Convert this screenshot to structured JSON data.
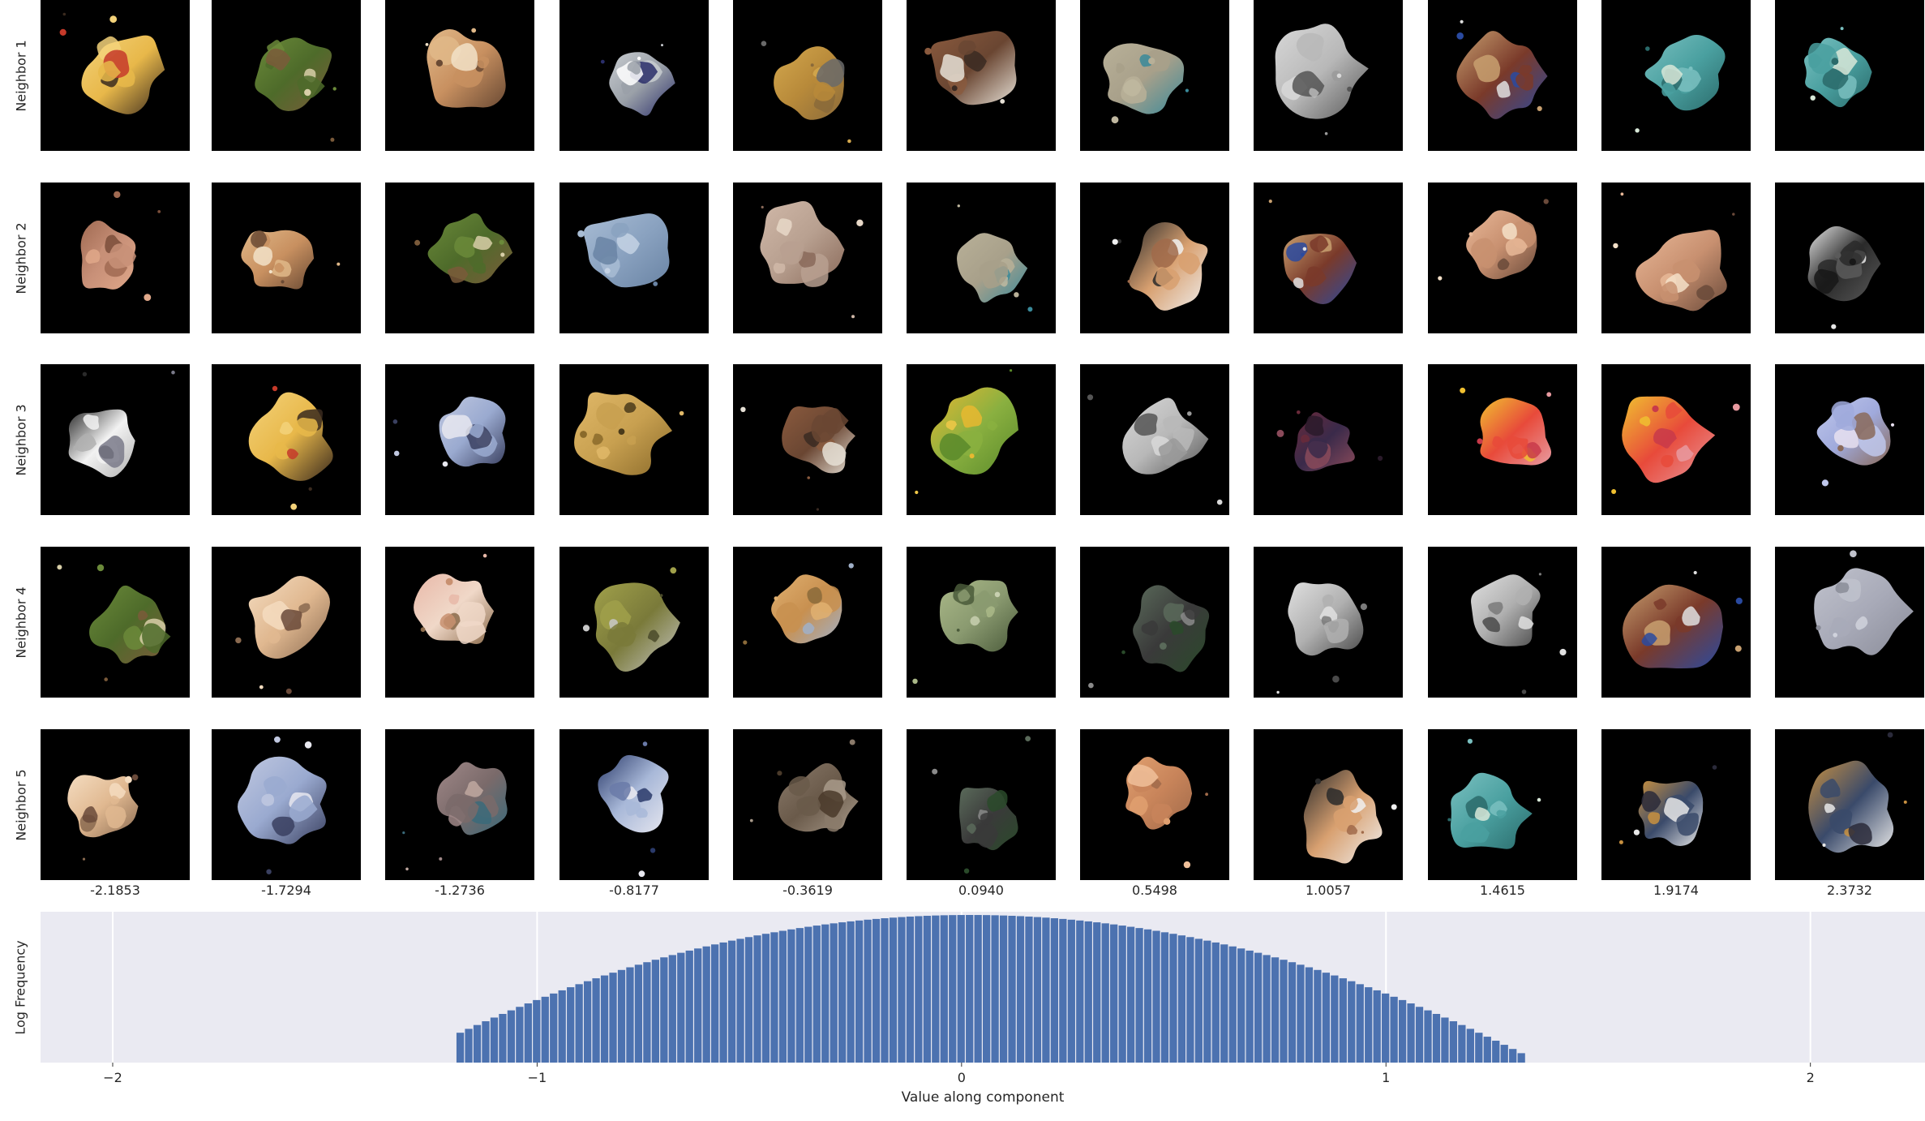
{
  "rows": [
    {
      "label": "Neighbor 1",
      "icons": [
        "shell-patch",
        "caterpillar-patch",
        "tiger-face-patch",
        "window-mosaic-patch",
        "bread-patch",
        "brown-lump-patch",
        "beach-patch",
        "gray-box-patch",
        "market-stall-patch",
        "teal-ceiling-patch",
        "teal-ceiling-patch"
      ]
    },
    {
      "label": "Neighbor 2",
      "icons": [
        "wood-patch",
        "tiger-face-patch",
        "caterpillar-patch",
        "water-patch",
        "rock-patch",
        "beach-patch",
        "speaker-cart-patch",
        "market-stall-patch",
        "ribbed-structure-patch",
        "ribbed-structure-patch",
        "dark-small-patch"
      ]
    },
    {
      "label": "Neighbor 3",
      "icons": [
        "cow-pattern-patch",
        "shell-patch",
        "silver-horse-patch",
        "gold-surface-patch",
        "brown-lump-patch",
        "green-field-patch",
        "gray-box-patch",
        "purple-window-patch",
        "colorful-cloth-patch",
        "colorful-cloth-patch",
        "lavender-patch"
      ]
    },
    {
      "label": "Neighbor 4",
      "icons": [
        "caterpillar-patch",
        "sleeping-cat-patch",
        "axolotl-patch",
        "olive-blob-patch",
        "desert-patch",
        "leafy-patch",
        "dark-building-patch",
        "bw-machine-patch",
        "bw-machine-patch",
        "market-stall-patch",
        "gray-blob-patch"
      ]
    },
    {
      "label": "Neighbor 5",
      "icons": [
        "sleeping-cat-patch",
        "silver-horse-patch",
        "metallic-blur-patch",
        "jet-ski-patch",
        "animal-head-patch",
        "dark-building-patch",
        "orange-strip-patch",
        "speaker-cart-patch",
        "teal-ceiling-patch",
        "shelf-people-patch",
        "shelf-people-patch"
      ]
    }
  ],
  "column_values": [
    "-2.1853",
    "-1.7294",
    "-1.2736",
    "-0.8177",
    "-0.3619",
    "0.0940",
    "0.5498",
    "1.0057",
    "1.4615",
    "1.9174",
    "2.3732"
  ],
  "patch_palettes": {
    "shell-patch": [
      "#e8b84a",
      "#f3d27a",
      "#3a2a1e",
      "#c63a2a"
    ],
    "caterpillar-patch": [
      "#4e6b2a",
      "#6b8a3a",
      "#7a5a3a",
      "#d8cfa8"
    ],
    "tiger-face-patch": [
      "#c89060",
      "#e0b888",
      "#6a4a34",
      "#f2e2c8"
    ],
    "window-mosaic-patch": [
      "#9aa0a8",
      "#c8ccd0",
      "#2a2e6a",
      "#ffffff"
    ],
    "bread-patch": [
      "#b88a3a",
      "#d4a84e",
      "#8a6a3a",
      "#6a6a6a"
    ],
    "brown-lump-patch": [
      "#6a4632",
      "#8a5a3e",
      "#e6e0d6",
      "#3a2a22"
    ],
    "beach-patch": [
      "#a8a08a",
      "#b8b098",
      "#3a8a9a",
      "#c0b8a0"
    ],
    "gray-box-patch": [
      "#b8b8b8",
      "#d8d8d8",
      "#555555",
      "#9a9a9a"
    ],
    "market-stall-patch": [
      "#7a3a2a",
      "#c8a070",
      "#2a4aa0",
      "#e0e0e0"
    ],
    "teal-ceiling-patch": [
      "#4aa0a0",
      "#7ac0c0",
      "#2a6a6a",
      "#d8e8d8"
    ],
    "wood-patch": [
      "#c89078",
      "#a06a52",
      "#e0a88a",
      "#7a4e3a"
    ],
    "water-patch": [
      "#8aa2c0",
      "#a8bcd4",
      "#6a84a4",
      "#c4d2e4"
    ],
    "rock-patch": [
      "#b8a090",
      "#d0b8a8",
      "#8a6a5a",
      "#e8d8c8"
    ],
    "speaker-cart-patch": [
      "#d8a070",
      "#2a2a2a",
      "#f0f0f0",
      "#a06a4a"
    ],
    "ribbed-structure-patch": [
      "#c89070",
      "#e8b898",
      "#6a4a3a",
      "#f4e0c8"
    ],
    "dark-small-patch": [
      "#2a2a2a",
      "#e8e8e8",
      "#5a5a5a",
      "#181818"
    ],
    "cow-pattern-patch": [
      "#f2f2f2",
      "#2a2a2a",
      "#b0b0b0",
      "#7a7a8a"
    ],
    "silver-horse-patch": [
      "#9aaad0",
      "#c0c8e0",
      "#3a4060",
      "#e8e8f0"
    ],
    "gold-surface-patch": [
      "#c8a050",
      "#e0b868",
      "#8a6a2a",
      "#4a3a1a"
    ],
    "green-field-patch": [
      "#8ab040",
      "#e8b830",
      "#5a8a2a",
      "#f0c848"
    ],
    "purple-window-patch": [
      "#3a2a4a",
      "#6a2a3a",
      "#8a4a5a",
      "#2a1a2a"
    ],
    "colorful-cloth-patch": [
      "#e84a3a",
      "#f0c030",
      "#e89aa0",
      "#c83a4a"
    ],
    "lavender-patch": [
      "#a0aadc",
      "#c0c8ec",
      "#8a6a5a",
      "#e8e0f0"
    ],
    "sleeping-cat-patch": [
      "#e0b890",
      "#f4dcc0",
      "#8a6a50",
      "#6a4a3a"
    ],
    "axolotl-patch": [
      "#f0d8c8",
      "#e8b8a8",
      "#8a6a4a",
      "#c89070"
    ],
    "olive-blob-patch": [
      "#7a7a3a",
      "#a0a04a",
      "#c8c8c8",
      "#4a4a2a"
    ],
    "desert-patch": [
      "#c89050",
      "#e0b070",
      "#a0b0c8",
      "#8a6a3a"
    ],
    "leafy-patch": [
      "#8a9a70",
      "#aab888",
      "#4a5a3a",
      "#c8d0b0"
    ],
    "dark-building-patch": [
      "#3a3a3a",
      "#5a6a5a",
      "#2a4a2a",
      "#8a8a8a"
    ],
    "bw-machine-patch": [
      "#b0b0b0",
      "#e0e0e0",
      "#4a4a4a",
      "#7a7a7a"
    ],
    "gray-blob-patch": [
      "#a8aab8",
      "#c0c2cc",
      "#8a8c98",
      "#d0d2dc"
    ],
    "metallic-blur-patch": [
      "#7a6a6a",
      "#a08888",
      "#3a6a7a",
      "#c0a8a0"
    ],
    "jet-ski-patch": [
      "#a8b8d8",
      "#2a3a6a",
      "#e8e8f0",
      "#6a7aa8"
    ],
    "animal-head-patch": [
      "#6a5a4a",
      "#8a7a6a",
      "#a89a8a",
      "#4a3a2a"
    ],
    "orange-strip-patch": [
      "#c8845a",
      "#e0a070",
      "#a06a4a",
      "#f0c09a"
    ],
    "shelf-people-patch": [
      "#3a4a6a",
      "#c89040",
      "#e8e8e8",
      "#2a2a3a"
    ]
  },
  "chart_data": {
    "type": "bar",
    "xlabel": "Value along component",
    "ylabel": "Log Frequency",
    "xlim": [
      -2.17,
      2.27
    ],
    "xticks": [
      -2,
      -1,
      0,
      1,
      2
    ],
    "xtick_labels": [
      "−2",
      "−1",
      "0",
      "1",
      "2"
    ],
    "y_scale": "log",
    "grid": true,
    "bar_color": "#4c72b0",
    "background": "#eaeaf2",
    "distribution": {
      "center": 0.02,
      "std": 0.28,
      "support": [
        -1.18,
        1.32
      ],
      "peak_log_frequency": 5.0
    },
    "bin_width": 0.02
  }
}
